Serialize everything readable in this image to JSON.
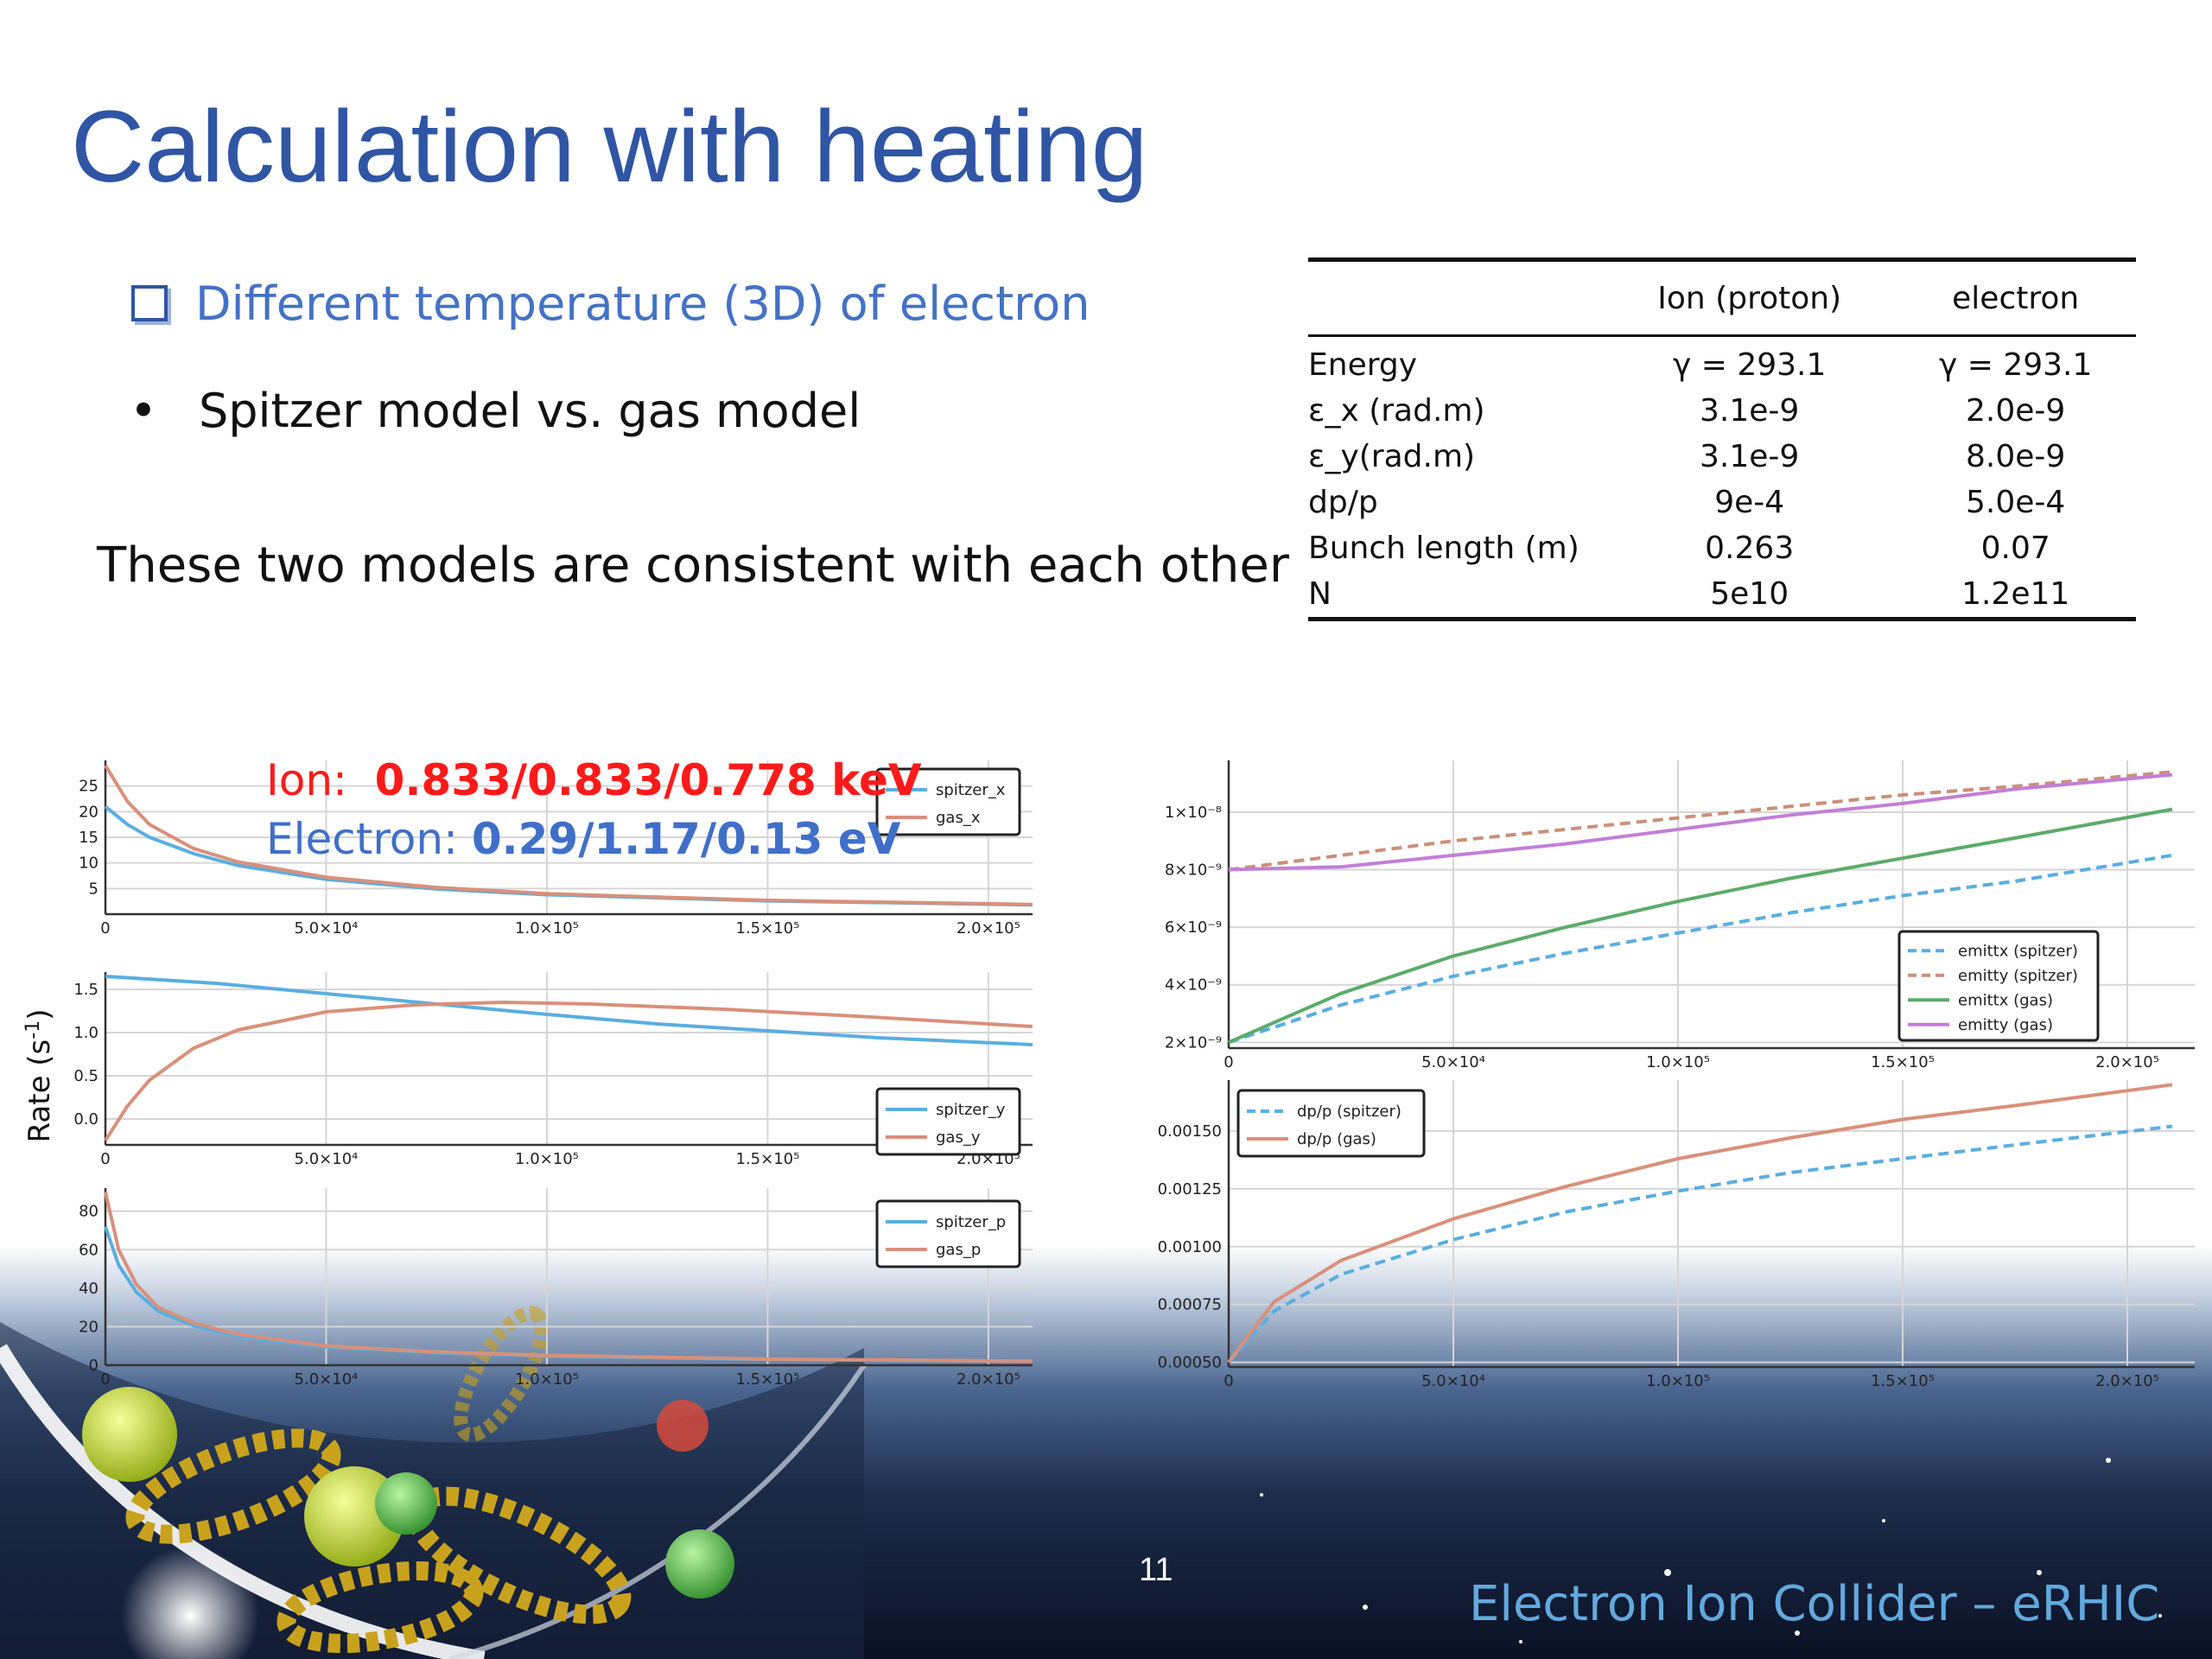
{
  "slide": {
    "title": "Calculation with heating",
    "bullet1": "Different temperature (3D) of electron",
    "bullet2_marker": "•",
    "bullet2": "Spitzer model vs. gas model",
    "note": "These two models are consistent with each other",
    "page_number": "11",
    "footer": "Electron Ion Collider – eRHIC",
    "colors": {
      "title": "#2f55a4",
      "bullet1": "#4472c4",
      "ion": "#ff1a1a",
      "electron": "#3f6fc8",
      "footer": "#62a9de"
    }
  },
  "table": {
    "headers": [
      "",
      "Ion (proton)",
      "electron"
    ],
    "rows": [
      [
        "Energy",
        "γ = 293.1",
        "γ = 293.1"
      ],
      [
        "ε_x (rad.m)",
        "3.1e-9",
        "2.0e-9"
      ],
      [
        "ε_y(rad.m)",
        "3.1e-9",
        "8.0e-9"
      ],
      [
        "dp/p",
        "9e-4",
        "5.0e-4"
      ],
      [
        "Bunch length (m)",
        "0.263",
        "0.07"
      ],
      [
        "N",
        "5e10",
        "1.2e11"
      ]
    ]
  },
  "annotations": {
    "ion_label": "Ion:",
    "ion_value": "0.833/0.833/0.778 keV",
    "electron_label": "Electron:",
    "electron_value": "0.29/1.17/0.13 eV"
  },
  "ylabel": "Rate (s",
  "ylabel_sup": "-1",
  "ylabel_close": ")",
  "chart_data": [
    {
      "type": "line",
      "xlim": [
        0,
        210000
      ],
      "ylim": [
        0,
        30
      ],
      "xticks": [
        0,
        50000,
        100000,
        150000,
        200000
      ],
      "xtick_labels": [
        "0",
        "5.0×10⁴",
        "1.0×10⁵",
        "1.5×10⁵",
        "2.0×10⁵"
      ],
      "yticks": [
        5,
        10,
        15,
        20,
        25
      ],
      "ytick_labels": [
        "5",
        "10",
        "15",
        "20",
        "25"
      ],
      "grid": true,
      "legend": "top-right",
      "series": [
        {
          "name": "spitzer_x",
          "color": "#5aaee0",
          "dash": false,
          "x": [
            0,
            5000,
            10000,
            20000,
            30000,
            50000,
            75000,
            100000,
            150000,
            210000
          ],
          "y": [
            21,
            17.5,
            15,
            11.8,
            9.5,
            6.8,
            4.9,
            3.8,
            2.6,
            1.8
          ]
        },
        {
          "name": "gas_x",
          "color": "#d9907a",
          "dash": false,
          "x": [
            0,
            5000,
            10000,
            20000,
            30000,
            50000,
            75000,
            100000,
            150000,
            210000
          ],
          "y": [
            29,
            22,
            17.5,
            12.8,
            10.2,
            7.2,
            5.2,
            4.0,
            2.7,
            1.9
          ]
        }
      ]
    },
    {
      "type": "line",
      "xlim": [
        0,
        210000
      ],
      "ylim": [
        -0.3,
        1.7
      ],
      "xticks": [
        0,
        50000,
        100000,
        150000,
        200000
      ],
      "xtick_labels": [
        "0",
        "5.0×10⁴",
        "1.0×10⁵",
        "1.5×10⁵",
        "2.0×10⁵"
      ],
      "yticks": [
        0,
        0.5,
        1.0,
        1.5
      ],
      "ytick_labels": [
        "0.0",
        "0.5",
        "1.0",
        "1.5"
      ],
      "grid": true,
      "legend": "bottom-right",
      "series": [
        {
          "name": "spitzer_y",
          "color": "#5aaee0",
          "dash": false,
          "x": [
            0,
            25000,
            50000,
            75000,
            100000,
            125000,
            150000,
            175000,
            210000
          ],
          "y": [
            1.65,
            1.57,
            1.45,
            1.33,
            1.21,
            1.1,
            1.02,
            0.94,
            0.86
          ]
        },
        {
          "name": "gas_y",
          "color": "#d9907a",
          "dash": false,
          "x": [
            0,
            5000,
            10000,
            20000,
            30000,
            50000,
            70000,
            90000,
            110000,
            140000,
            170000,
            210000
          ],
          "y": [
            -0.25,
            0.15,
            0.45,
            0.82,
            1.03,
            1.24,
            1.32,
            1.35,
            1.33,
            1.27,
            1.19,
            1.07
          ]
        }
      ]
    },
    {
      "type": "line",
      "xlim": [
        0,
        210000
      ],
      "ylim": [
        0,
        92
      ],
      "xticks": [
        0,
        50000,
        100000,
        150000,
        200000
      ],
      "xtick_labels": [
        "0",
        "5.0×10⁴",
        "1.0×10⁵",
        "1.5×10⁵",
        "2.0×10⁵"
      ],
      "yticks": [
        0,
        20,
        40,
        60,
        80
      ],
      "ytick_labels": [
        "0",
        "20",
        "40",
        "60",
        "80"
      ],
      "grid": true,
      "legend": "top-right",
      "series": [
        {
          "name": "spitzer_p",
          "color": "#5aaee0",
          "dash": false,
          "x": [
            0,
            3000,
            7000,
            12000,
            20000,
            30000,
            50000,
            75000,
            100000,
            150000,
            210000
          ],
          "y": [
            72,
            52,
            38,
            28,
            20.5,
            15,
            9.5,
            6.5,
            4.8,
            3.0,
            2.0
          ]
        },
        {
          "name": "gas_p",
          "color": "#d9907a",
          "dash": false,
          "x": [
            0,
            3000,
            7000,
            12000,
            20000,
            30000,
            50000,
            75000,
            100000,
            150000,
            210000
          ],
          "y": [
            90,
            60,
            42,
            30,
            22,
            16,
            10,
            6.9,
            5.1,
            3.2,
            2.1
          ]
        }
      ]
    },
    {
      "type": "line",
      "xlim": [
        0,
        215000
      ],
      "ylim": [
        1.8e-09,
        1.18e-08
      ],
      "xticks": [
        0,
        50000,
        100000,
        150000,
        200000
      ],
      "xtick_labels": [
        "0",
        "5.0×10⁴",
        "1.0×10⁵",
        "1.5×10⁵",
        "2.0×10⁵"
      ],
      "yticks": [
        2e-09,
        4e-09,
        6e-09,
        8e-09,
        1e-08
      ],
      "ytick_labels": [
        "2×10⁻⁹",
        "4×10⁻⁹",
        "6×10⁻⁹",
        "8×10⁻⁹",
        "1×10⁻⁸"
      ],
      "grid": true,
      "legend": "bottom-right",
      "series": [
        {
          "name": "emittx (spitzer)",
          "color": "#5aaee0",
          "dash": true,
          "x": [
            0,
            25000,
            50000,
            75000,
            100000,
            125000,
            150000,
            175000,
            210000
          ],
          "y": [
            2e-09,
            3.3e-09,
            4.3e-09,
            5.1e-09,
            5.8e-09,
            6.5e-09,
            7.1e-09,
            7.6e-09,
            8.5e-09
          ]
        },
        {
          "name": "emitty (spitzer)",
          "color": "#c9907a",
          "dash": true,
          "x": [
            0,
            25000,
            50000,
            75000,
            100000,
            125000,
            150000,
            175000,
            210000
          ],
          "y": [
            8e-09,
            8.5e-09,
            9e-09,
            9.4e-09,
            9.8e-09,
            1.02e-08,
            1.06e-08,
            1.09e-08,
            1.14e-08
          ]
        },
        {
          "name": "emittx (gas)",
          "color": "#5cab6a",
          "dash": false,
          "x": [
            0,
            25000,
            50000,
            75000,
            100000,
            125000,
            150000,
            175000,
            210000
          ],
          "y": [
            2e-09,
            3.7e-09,
            5e-09,
            6e-09,
            6.9e-09,
            7.7e-09,
            8.4e-09,
            9.1e-09,
            1.01e-08
          ]
        },
        {
          "name": "emitty (gas)",
          "color": "#c27fd6",
          "dash": false,
          "x": [
            0,
            25000,
            50000,
            75000,
            100000,
            125000,
            150000,
            175000,
            210000
          ],
          "y": [
            8e-09,
            8.1e-09,
            8.5e-09,
            8.9e-09,
            9.4e-09,
            9.9e-09,
            1.03e-08,
            1.08e-08,
            1.13e-08
          ]
        }
      ]
    },
    {
      "type": "line",
      "xlim": [
        0,
        215000
      ],
      "ylim": [
        0.00048,
        0.00172
      ],
      "xticks": [
        0,
        50000,
        100000,
        150000,
        200000
      ],
      "xtick_labels": [
        "0",
        "5.0×10⁴",
        "1.0×10⁵",
        "1.5×10⁵",
        "2.0×10⁵"
      ],
      "yticks": [
        0.0005,
        0.00075,
        0.001,
        0.00125,
        0.0015
      ],
      "ytick_labels": [
        "0.00050",
        "0.00075",
        "0.00100",
        "0.00125",
        "0.00150"
      ],
      "grid": true,
      "legend": "top-left",
      "series": [
        {
          "name": "dp/p (spitzer)",
          "color": "#5aaee0",
          "dash": true,
          "x": [
            0,
            10000,
            25000,
            50000,
            75000,
            100000,
            125000,
            150000,
            175000,
            210000
          ],
          "y": [
            0.0005,
            0.00072,
            0.00088,
            0.00103,
            0.00115,
            0.00124,
            0.00132,
            0.00138,
            0.00144,
            0.00152
          ]
        },
        {
          "name": "dp/p (gas)",
          "color": "#d9907a",
          "dash": false,
          "x": [
            0,
            10000,
            25000,
            50000,
            75000,
            100000,
            125000,
            150000,
            175000,
            210000
          ],
          "y": [
            0.0005,
            0.00076,
            0.00094,
            0.00112,
            0.00126,
            0.00138,
            0.00147,
            0.00155,
            0.00161,
            0.0017
          ]
        }
      ]
    }
  ]
}
